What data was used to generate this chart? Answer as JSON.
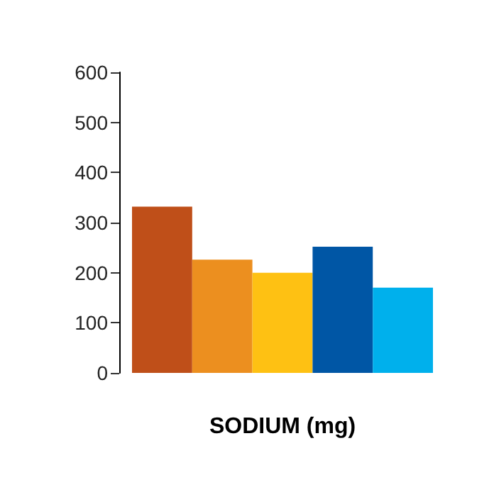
{
  "chart_data": {
    "type": "bar",
    "xlabel": "SODIUM (mg)",
    "categories": [
      null,
      null,
      null,
      null,
      null
    ],
    "values": [
      332,
      226,
      200,
      252,
      170
    ],
    "colors": [
      "#bf4f19",
      "#ec8f1f",
      "#fec113",
      "#0056a5",
      "#00b0ec"
    ],
    "ylim": [
      0,
      600
    ],
    "yticks": [
      0,
      100,
      200,
      300,
      400,
      500,
      600
    ],
    "grid": false
  }
}
